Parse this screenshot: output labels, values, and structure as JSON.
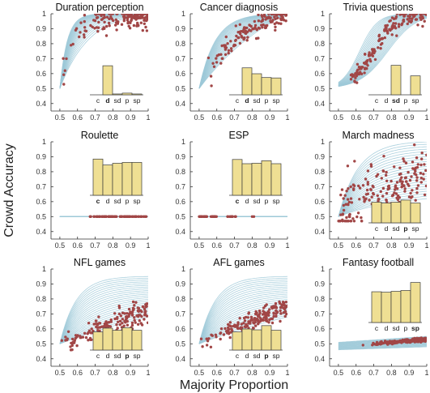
{
  "figure": {
    "ylabel": "Crowd Accuracy",
    "xlabel": "Majority Proportion"
  },
  "chart_data": [
    {
      "type": "scatter",
      "title": "Duration perception",
      "xlim": [
        0.45,
        1.0
      ],
      "ylim": [
        0.35,
        1.0
      ],
      "x_ticks": [
        "0.5",
        "0.6",
        "0.7",
        "0.8",
        "0.9",
        "1"
      ],
      "y_ticks": [
        "0.4",
        "0.5",
        "0.6",
        "0.7",
        "0.8",
        "0.9",
        "1"
      ],
      "curve_family": "concave-fast",
      "points_pattern": "concave-fast",
      "inset_bar": {
        "categories": [
          "c",
          "d",
          "sd",
          "p",
          "sp"
        ],
        "values": [
          0.0,
          0.69,
          0.02,
          0.04,
          0.02
        ],
        "bold": "d",
        "position": "bottom-right"
      }
    },
    {
      "type": "scatter",
      "title": "Cancer diagnosis",
      "xlim": [
        0.45,
        1.0
      ],
      "ylim": [
        0.35,
        1.0
      ],
      "x_ticks": [
        "0.5",
        "0.6",
        "0.7",
        "0.8",
        "0.9",
        "1"
      ],
      "y_ticks": [
        "0.4",
        "0.5",
        "0.6",
        "0.7",
        "0.8",
        "0.9",
        "1"
      ],
      "curve_family": "concave-medium",
      "points_pattern": "concave-medium",
      "inset_bar": {
        "categories": [
          "c",
          "d",
          "sd",
          "p",
          "sp"
        ],
        "values": [
          0.0,
          0.64,
          0.5,
          0.41,
          0.4
        ],
        "bold": "d",
        "position": "bottom-right"
      }
    },
    {
      "type": "scatter",
      "title": "Trivia questions",
      "xlim": [
        0.45,
        1.0
      ],
      "ylim": [
        0.35,
        1.0
      ],
      "x_ticks": [
        "0.5",
        "0.6",
        "0.7",
        "0.8",
        "0.9",
        "1"
      ],
      "y_ticks": [
        "0.4",
        "0.5",
        "0.6",
        "0.7",
        "0.8",
        "0.9",
        "1"
      ],
      "curve_family": "sigmoid",
      "points_pattern": "sigmoid",
      "inset_bar": {
        "categories": [
          "c",
          "d",
          "sd",
          "p",
          "sp"
        ],
        "values": [
          0.0,
          0.0,
          0.7,
          0.0,
          0.45
        ],
        "bold": "sd",
        "position": "bottom-right"
      }
    },
    {
      "type": "scatter",
      "title": "Roulette",
      "xlim": [
        0.45,
        1.0
      ],
      "ylim": [
        0.35,
        1.0
      ],
      "x_ticks": [
        "0.5",
        "0.6",
        "0.7",
        "0.8",
        "0.9",
        "1"
      ],
      "y_ticks": [
        "0.4",
        "0.5",
        "0.6",
        "0.7",
        "0.8",
        "0.9",
        "1"
      ],
      "curve_family": "flat",
      "points_pattern": "flat",
      "inset_bar": {
        "categories": [
          "c",
          "d",
          "sd",
          "p",
          "sp"
        ],
        "values": [
          0.86,
          0.72,
          0.76,
          0.78,
          0.78
        ],
        "bold": "c",
        "position": "top-right"
      }
    },
    {
      "type": "scatter",
      "title": "ESP",
      "xlim": [
        0.45,
        1.0
      ],
      "ylim": [
        0.35,
        1.0
      ],
      "x_ticks": [
        "0.5",
        "0.6",
        "0.7",
        "0.8",
        "0.9",
        "1"
      ],
      "y_ticks": [
        "0.4",
        "0.5",
        "0.6",
        "0.7",
        "0.8",
        "0.9",
        "1"
      ],
      "curve_family": "flat",
      "points_pattern": "flat-esp",
      "inset_bar": {
        "categories": [
          "c",
          "d",
          "sd",
          "p",
          "sp"
        ],
        "values": [
          0.85,
          0.75,
          0.76,
          0.82,
          0.75
        ],
        "bold": "c",
        "position": "top-right"
      }
    },
    {
      "type": "scatter",
      "title": "March madness",
      "xlim": [
        0.45,
        1.0
      ],
      "ylim": [
        0.35,
        1.0
      ],
      "x_ticks": [
        "0.5",
        "0.6",
        "0.7",
        "0.8",
        "0.9",
        "1"
      ],
      "y_ticks": [
        "0.4",
        "0.5",
        "0.6",
        "0.7",
        "0.8",
        "0.9",
        "1"
      ],
      "curve_family": "fan",
      "points_pattern": "diffuse",
      "inset_bar": {
        "categories": [
          "c",
          "d",
          "sd",
          "p",
          "sp"
        ],
        "values": [
          0.49,
          0.47,
          0.49,
          0.54,
          0.47
        ],
        "bold": "p",
        "position": "bottom-right"
      }
    },
    {
      "type": "scatter",
      "title": "NFL games",
      "xlim": [
        0.45,
        1.0
      ],
      "ylim": [
        0.35,
        1.0
      ],
      "x_ticks": [
        "0.5",
        "0.6",
        "0.7",
        "0.8",
        "0.9",
        "1"
      ],
      "y_ticks": [
        "0.4",
        "0.5",
        "0.6",
        "0.7",
        "0.8",
        "0.9",
        "1"
      ],
      "curve_family": "fan-moderate",
      "points_pattern": "moderate",
      "inset_bar": {
        "categories": [
          "c",
          "d",
          "sd",
          "p",
          "sp"
        ],
        "values": [
          0.43,
          0.52,
          0.47,
          0.53,
          0.47
        ],
        "bold": "p",
        "position": "bottom-right"
      }
    },
    {
      "type": "scatter",
      "title": "AFL games",
      "xlim": [
        0.45,
        1.0
      ],
      "ylim": [
        0.35,
        1.0
      ],
      "x_ticks": [
        "0.5",
        "0.6",
        "0.7",
        "0.8",
        "0.9",
        "1"
      ],
      "y_ticks": [
        "0.4",
        "0.5",
        "0.6",
        "0.7",
        "0.8",
        "0.9",
        "1"
      ],
      "curve_family": "fan-moderate",
      "points_pattern": "moderate-afl",
      "inset_bar": {
        "categories": [
          "c",
          "d",
          "sd",
          "p",
          "sp"
        ],
        "values": [
          0.43,
          0.5,
          0.48,
          0.58,
          0.47
        ],
        "bold": "p",
        "position": "bottom-right"
      }
    },
    {
      "type": "scatter",
      "title": "Fantasy football",
      "xlim": [
        0.45,
        1.0
      ],
      "ylim": [
        0.35,
        1.0
      ],
      "x_ticks": [
        "0.5",
        "0.6",
        "0.7",
        "0.8",
        "0.9",
        "1"
      ],
      "y_ticks": [
        "0.4",
        "0.5",
        "0.6",
        "0.7",
        "0.8",
        "0.9",
        "1"
      ],
      "curve_family": "flat-low",
      "points_pattern": "low",
      "inset_bar": {
        "categories": [
          "c",
          "d",
          "sd",
          "p",
          "sp"
        ],
        "values": [
          0.73,
          0.72,
          0.74,
          0.76,
          0.95
        ],
        "bold": "sp",
        "position": "top-right"
      }
    }
  ],
  "colors": {
    "curve": "#9ec9d8",
    "point": "#a14646",
    "bar_fill": "#efdf93",
    "bar_stroke": "#3c3c3c",
    "axis": "#333333"
  }
}
